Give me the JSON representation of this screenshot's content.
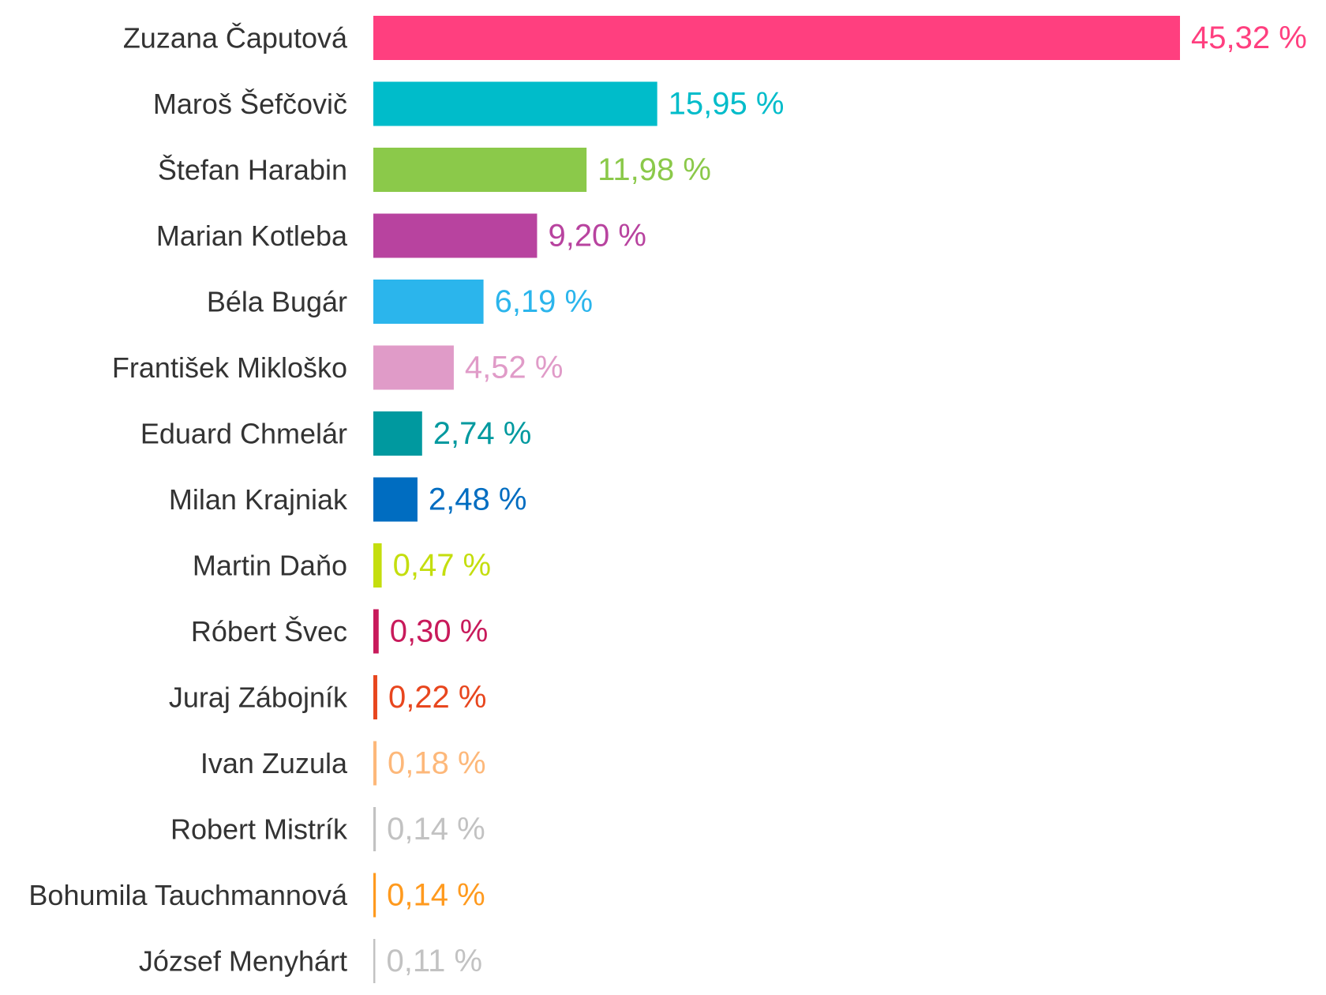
{
  "chart_data": {
    "type": "bar",
    "orientation": "horizontal",
    "categories": [
      "Zuzana Čaputová",
      "Maroš Šefčovič",
      "Štefan Harabin",
      "Marian Kotleba",
      "Béla Bugár",
      "František Mikloško",
      "Eduard Chmelár",
      "Milan Krajniak",
      "Martin Daňo",
      "Róbert Švec",
      "Juraj Zábojník",
      "Ivan Zuzula",
      "Robert Mistrík",
      "Bohumila Tauchmannová",
      "József Menyhárt"
    ],
    "values": [
      45.32,
      15.95,
      11.98,
      9.2,
      6.19,
      4.52,
      2.74,
      2.48,
      0.47,
      0.3,
      0.22,
      0.18,
      0.14,
      0.14,
      0.11
    ],
    "value_labels": [
      "45,32 %",
      "15,95 %",
      "11,98 %",
      "9,20 %",
      "6,19 %",
      "4,52 %",
      "2,74 %",
      "2,48 %",
      "0,47 %",
      "0,30 %",
      "0,22 %",
      "0,18 %",
      "0,14 %",
      "0,14 %",
      "0,11 %"
    ],
    "colors": [
      "#ff3f7f",
      "#00bcca",
      "#8bc94a",
      "#b8439f",
      "#2bb5ec",
      "#e09bc8",
      "#00999f",
      "#006dc1",
      "#c4de0e",
      "#c81a5b",
      "#e8461e",
      "#fdb87a",
      "#c2c2c2",
      "#ff9a1e",
      "#c2c2c2"
    ],
    "title": "",
    "xlabel": "",
    "ylabel": "",
    "xlim": [
      0,
      45.32
    ],
    "grid": false,
    "legend": "none"
  }
}
